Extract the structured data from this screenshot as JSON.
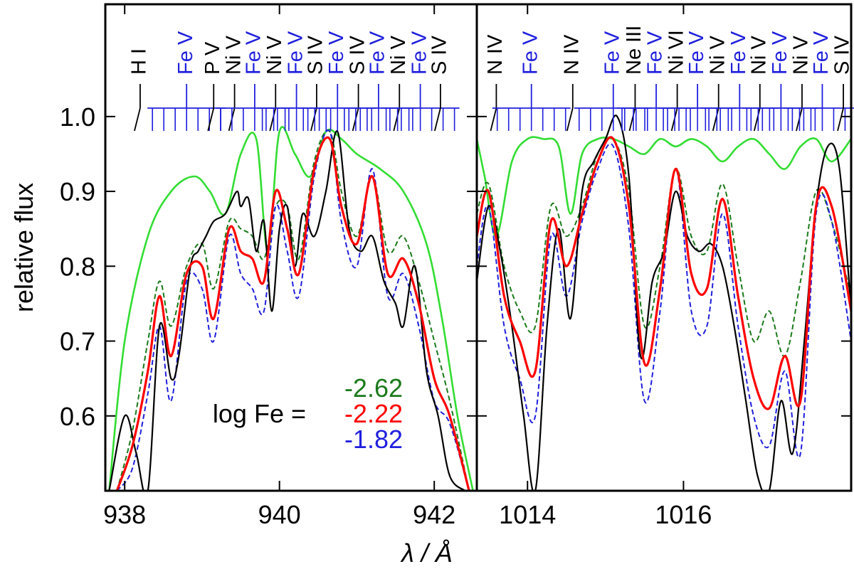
{
  "chart_data": {
    "type": "line",
    "ylabel": "relative flux",
    "xlabel": "λ / Å",
    "ylim": [
      0.5,
      1.15
    ],
    "yticks": [
      "0.6",
      "0.7",
      "0.8",
      "0.9",
      "1.0"
    ],
    "legend": {
      "label": "log Fe =",
      "entries": [
        {
          "text": "-2.62",
          "color": "#1a7a1a"
        },
        {
          "text": "-2.22",
          "color": "#ff0000"
        },
        {
          "text": "-1.82",
          "color": "#1f1fdd"
        }
      ]
    },
    "colors": {
      "observation": "#000000",
      "model_noFe": "#33dd33",
      "model_low": "#1a7a1a",
      "model_mid": "#ff0000",
      "model_high": "#1f1fdd",
      "fe_marks": "#1f1fdd",
      "other_marks": "#000000"
    },
    "panels": [
      {
        "xlim": [
          937.75,
          942.55
        ],
        "xticks": [
          "938",
          "940",
          "942"
        ],
        "ion_labels": [
          {
            "text": "H I",
            "color": "#000000",
            "wl": 938.2
          },
          {
            "text": "Fe V",
            "color": "#1f1fdd",
            "wl": 938.8
          },
          {
            "text": "P V",
            "color": "#000000",
            "wl": 939.15
          },
          {
            "text": "Ni V",
            "color": "#000000",
            "wl": 939.42
          },
          {
            "text": "Fe V",
            "color": "#1f1fdd",
            "wl": 939.68
          },
          {
            "text": "Ni V",
            "color": "#000000",
            "wl": 939.95
          },
          {
            "text": "Fe V",
            "color": "#1f1fdd",
            "wl": 940.22
          },
          {
            "text": "S IV",
            "color": "#000000",
            "wl": 940.48
          },
          {
            "text": "Fe V",
            "color": "#1f1fdd",
            "wl": 940.75
          },
          {
            "text": "S IV",
            "color": "#000000",
            "wl": 941.02
          },
          {
            "text": "Fe V",
            "color": "#1f1fdd",
            "wl": 941.28
          },
          {
            "text": "Ni V",
            "color": "#000000",
            "wl": 941.55
          },
          {
            "text": "Fe V",
            "color": "#1f1fdd",
            "wl": 941.82
          },
          {
            "text": "S IV",
            "color": "#000000",
            "wl": 942.08
          }
        ],
        "series": [
          {
            "name": "observation",
            "x": [
              937.8,
              938.0,
              938.15,
              938.3,
              938.45,
              938.6,
              938.7,
              938.85,
              938.95,
              939.05,
              939.15,
              939.3,
              939.45,
              939.5,
              939.6,
              939.7,
              939.8,
              939.9,
              940.0,
              940.1,
              940.2,
              940.3,
              940.45,
              940.6,
              940.75,
              940.9,
              941.05,
              941.2,
              941.35,
              941.5,
              941.6,
              941.75,
              941.9,
              942.05,
              942.2,
              942.4
            ],
            "y": [
              0.5,
              0.6,
              0.55,
              0.5,
              0.72,
              0.65,
              0.68,
              0.8,
              0.82,
              0.84,
              0.86,
              0.87,
              0.9,
              0.88,
              0.89,
              0.82,
              0.86,
              0.74,
              0.85,
              0.88,
              0.8,
              0.87,
              0.84,
              0.9,
              0.98,
              0.85,
              0.82,
              0.84,
              0.78,
              0.75,
              0.72,
              0.8,
              0.66,
              0.6,
              0.52,
              0.5
            ]
          },
          {
            "name": "model logFe=-2.62",
            "x": [
              937.9,
              938.1,
              938.3,
              938.45,
              938.6,
              938.8,
              939.0,
              939.15,
              939.35,
              939.5,
              939.65,
              939.8,
              939.95,
              940.1,
              940.25,
              940.45,
              940.65,
              940.8,
              941.0,
              941.2,
              941.4,
              941.6,
              941.8,
              942.0,
              942.2,
              942.45
            ],
            "y": [
              0.5,
              0.58,
              0.7,
              0.78,
              0.72,
              0.8,
              0.83,
              0.77,
              0.86,
              0.85,
              0.84,
              0.81,
              0.88,
              0.88,
              0.81,
              0.94,
              0.98,
              0.9,
              0.84,
              0.92,
              0.82,
              0.84,
              0.78,
              0.7,
              0.62,
              0.5
            ]
          },
          {
            "name": "model logFe=-2.22",
            "x": [
              937.9,
              938.1,
              938.3,
              938.45,
              938.6,
              938.8,
              939.0,
              939.15,
              939.35,
              939.5,
              939.65,
              939.8,
              939.95,
              940.1,
              940.25,
              940.45,
              940.65,
              940.8,
              941.0,
              941.2,
              941.4,
              941.6,
              941.8,
              942.0,
              942.2,
              942.45
            ],
            "y": [
              0.5,
              0.56,
              0.66,
              0.76,
              0.68,
              0.79,
              0.8,
              0.73,
              0.85,
              0.82,
              0.81,
              0.78,
              0.9,
              0.85,
              0.79,
              0.93,
              0.97,
              0.88,
              0.83,
              0.92,
              0.79,
              0.81,
              0.75,
              0.65,
              0.6,
              0.5
            ]
          },
          {
            "name": "model logFe=-1.82",
            "x": [
              937.9,
              938.1,
              938.3,
              938.45,
              938.6,
              938.8,
              939.0,
              939.15,
              939.35,
              939.5,
              939.65,
              939.8,
              939.95,
              940.1,
              940.25,
              940.45,
              940.65,
              940.8,
              941.0,
              941.2,
              941.4,
              941.6,
              941.8,
              942.0,
              942.2,
              942.45
            ],
            "y": [
              0.5,
              0.53,
              0.63,
              0.72,
              0.62,
              0.78,
              0.77,
              0.7,
              0.84,
              0.79,
              0.77,
              0.74,
              0.88,
              0.82,
              0.76,
              0.92,
              0.98,
              0.86,
              0.8,
              0.93,
              0.76,
              0.79,
              0.72,
              0.62,
              0.59,
              0.5
            ]
          },
          {
            "name": "model without Fe",
            "x": [
              937.8,
              938.0,
              938.3,
              938.6,
              938.9,
              939.1,
              939.3,
              939.5,
              939.7,
              939.85,
              940.0,
              940.2,
              940.4,
              940.6,
              940.8,
              941.0,
              941.3,
              941.6,
              941.9,
              942.1,
              942.3,
              942.5
            ],
            "y": [
              0.5,
              0.7,
              0.84,
              0.9,
              0.92,
              0.9,
              0.87,
              0.95,
              0.97,
              0.82,
              0.98,
              0.95,
              0.92,
              0.98,
              0.97,
              0.95,
              0.93,
              0.9,
              0.83,
              0.73,
              0.6,
              0.5
            ]
          }
        ]
      },
      {
        "xlim": [
          1013.35,
          1018.15
        ],
        "xticks": [
          "1014",
          "1016"
        ],
        "ion_labels": [
          {
            "text": "N IV",
            "color": "#000000",
            "wl": 1013.6
          },
          {
            "text": "Fe V",
            "color": "#1f1fdd",
            "wl": 1014.05
          },
          {
            "text": "N IV",
            "color": "#000000",
            "wl": 1014.58
          },
          {
            "text": "Fe V",
            "color": "#1f1fdd",
            "wl": 1015.1
          },
          {
            "text": "Ne III",
            "color": "#000000",
            "wl": 1015.38
          },
          {
            "text": "Fe V",
            "color": "#1f1fdd",
            "wl": 1015.65
          },
          {
            "text": "Ni VI",
            "color": "#000000",
            "wl": 1015.92
          },
          {
            "text": "Fe V",
            "color": "#1f1fdd",
            "wl": 1016.18
          },
          {
            "text": "Ni V",
            "color": "#000000",
            "wl": 1016.45
          },
          {
            "text": "Fe V",
            "color": "#1f1fdd",
            "wl": 1016.72
          },
          {
            "text": "Ni V",
            "color": "#000000",
            "wl": 1016.98
          },
          {
            "text": "Fe V",
            "color": "#1f1fdd",
            "wl": 1017.25
          },
          {
            "text": "Ni V",
            "color": "#000000",
            "wl": 1017.52
          },
          {
            "text": "Fe V",
            "color": "#1f1fdd",
            "wl": 1017.78
          },
          {
            "text": "S IV",
            "color": "#000000",
            "wl": 1018.05
          }
        ],
        "series": [
          {
            "name": "observation",
            "x": [
              1013.35,
              1013.5,
              1013.65,
              1013.8,
              1013.95,
              1014.1,
              1014.25,
              1014.4,
              1014.55,
              1014.7,
              1014.85,
              1015.0,
              1015.15,
              1015.3,
              1015.45,
              1015.6,
              1015.75,
              1015.9,
              1016.05,
              1016.2,
              1016.35,
              1016.5,
              1016.65,
              1016.8,
              1016.95,
              1017.1,
              1017.25,
              1017.4,
              1017.55,
              1017.7,
              1017.85,
              1018.0,
              1018.15
            ],
            "y": [
              0.78,
              0.88,
              0.82,
              0.72,
              0.6,
              0.5,
              0.72,
              0.85,
              0.73,
              0.9,
              0.94,
              0.97,
              1.0,
              0.92,
              0.68,
              0.78,
              0.82,
              0.9,
              0.84,
              0.82,
              0.83,
              0.8,
              0.72,
              0.62,
              0.52,
              0.5,
              0.62,
              0.55,
              0.7,
              0.88,
              0.96,
              0.93,
              0.74
            ]
          },
          {
            "name": "model logFe=-2.62",
            "x": [
              1013.35,
              1013.5,
              1013.7,
              1013.9,
              1014.1,
              1014.3,
              1014.5,
              1014.7,
              1014.9,
              1015.1,
              1015.3,
              1015.5,
              1015.7,
              1015.9,
              1016.1,
              1016.3,
              1016.5,
              1016.7,
              1016.9,
              1017.1,
              1017.3,
              1017.5,
              1017.7,
              1017.9,
              1018.15
            ],
            "y": [
              0.87,
              0.91,
              0.8,
              0.74,
              0.72,
              0.88,
              0.84,
              0.88,
              0.95,
              0.97,
              0.9,
              0.72,
              0.8,
              0.93,
              0.84,
              0.82,
              0.91,
              0.8,
              0.7,
              0.74,
              0.68,
              0.78,
              0.9,
              0.86,
              0.76
            ]
          },
          {
            "name": "model logFe=-2.22",
            "x": [
              1013.35,
              1013.5,
              1013.7,
              1013.9,
              1014.1,
              1014.3,
              1014.5,
              1014.7,
              1014.9,
              1015.1,
              1015.3,
              1015.5,
              1015.7,
              1015.9,
              1016.1,
              1016.3,
              1016.5,
              1016.7,
              1016.9,
              1017.1,
              1017.3,
              1017.5,
              1017.7,
              1017.9,
              1018.15
            ],
            "y": [
              0.84,
              0.9,
              0.76,
              0.7,
              0.66,
              0.86,
              0.8,
              0.87,
              0.94,
              0.97,
              0.88,
              0.67,
              0.77,
              0.93,
              0.79,
              0.77,
              0.89,
              0.76,
              0.65,
              0.61,
              0.68,
              0.62,
              0.88,
              0.88,
              0.74
            ]
          },
          {
            "name": "model logFe=-1.82",
            "x": [
              1013.35,
              1013.5,
              1013.7,
              1013.9,
              1014.1,
              1014.3,
              1014.5,
              1014.7,
              1014.9,
              1015.1,
              1015.3,
              1015.5,
              1015.7,
              1015.9,
              1016.1,
              1016.3,
              1016.5,
              1016.7,
              1016.9,
              1017.1,
              1017.3,
              1017.5,
              1017.7,
              1017.9,
              1018.15
            ],
            "y": [
              0.8,
              0.88,
              0.72,
              0.65,
              0.6,
              0.84,
              0.76,
              0.86,
              0.93,
              0.96,
              0.85,
              0.62,
              0.74,
              0.93,
              0.74,
              0.72,
              0.87,
              0.72,
              0.6,
              0.56,
              0.66,
              0.55,
              0.87,
              0.86,
              0.7
            ]
          },
          {
            "name": "model without Fe",
            "x": [
              1013.35,
              1013.45,
              1013.6,
              1013.8,
              1014.0,
              1014.2,
              1014.4,
              1014.55,
              1014.7,
              1014.9,
              1015.1,
              1015.3,
              1015.5,
              1015.7,
              1015.9,
              1016.1,
              1016.3,
              1016.5,
              1016.7,
              1016.9,
              1017.1,
              1017.3,
              1017.5,
              1017.7,
              1017.9,
              1018.15
            ],
            "y": [
              0.97,
              0.92,
              0.84,
              0.94,
              0.97,
              0.97,
              0.96,
              0.87,
              0.95,
              0.97,
              0.97,
              0.96,
              0.95,
              0.97,
              0.96,
              0.97,
              0.96,
              0.94,
              0.96,
              0.97,
              0.95,
              0.93,
              0.96,
              0.97,
              0.94,
              0.97
            ]
          }
        ]
      }
    ]
  }
}
